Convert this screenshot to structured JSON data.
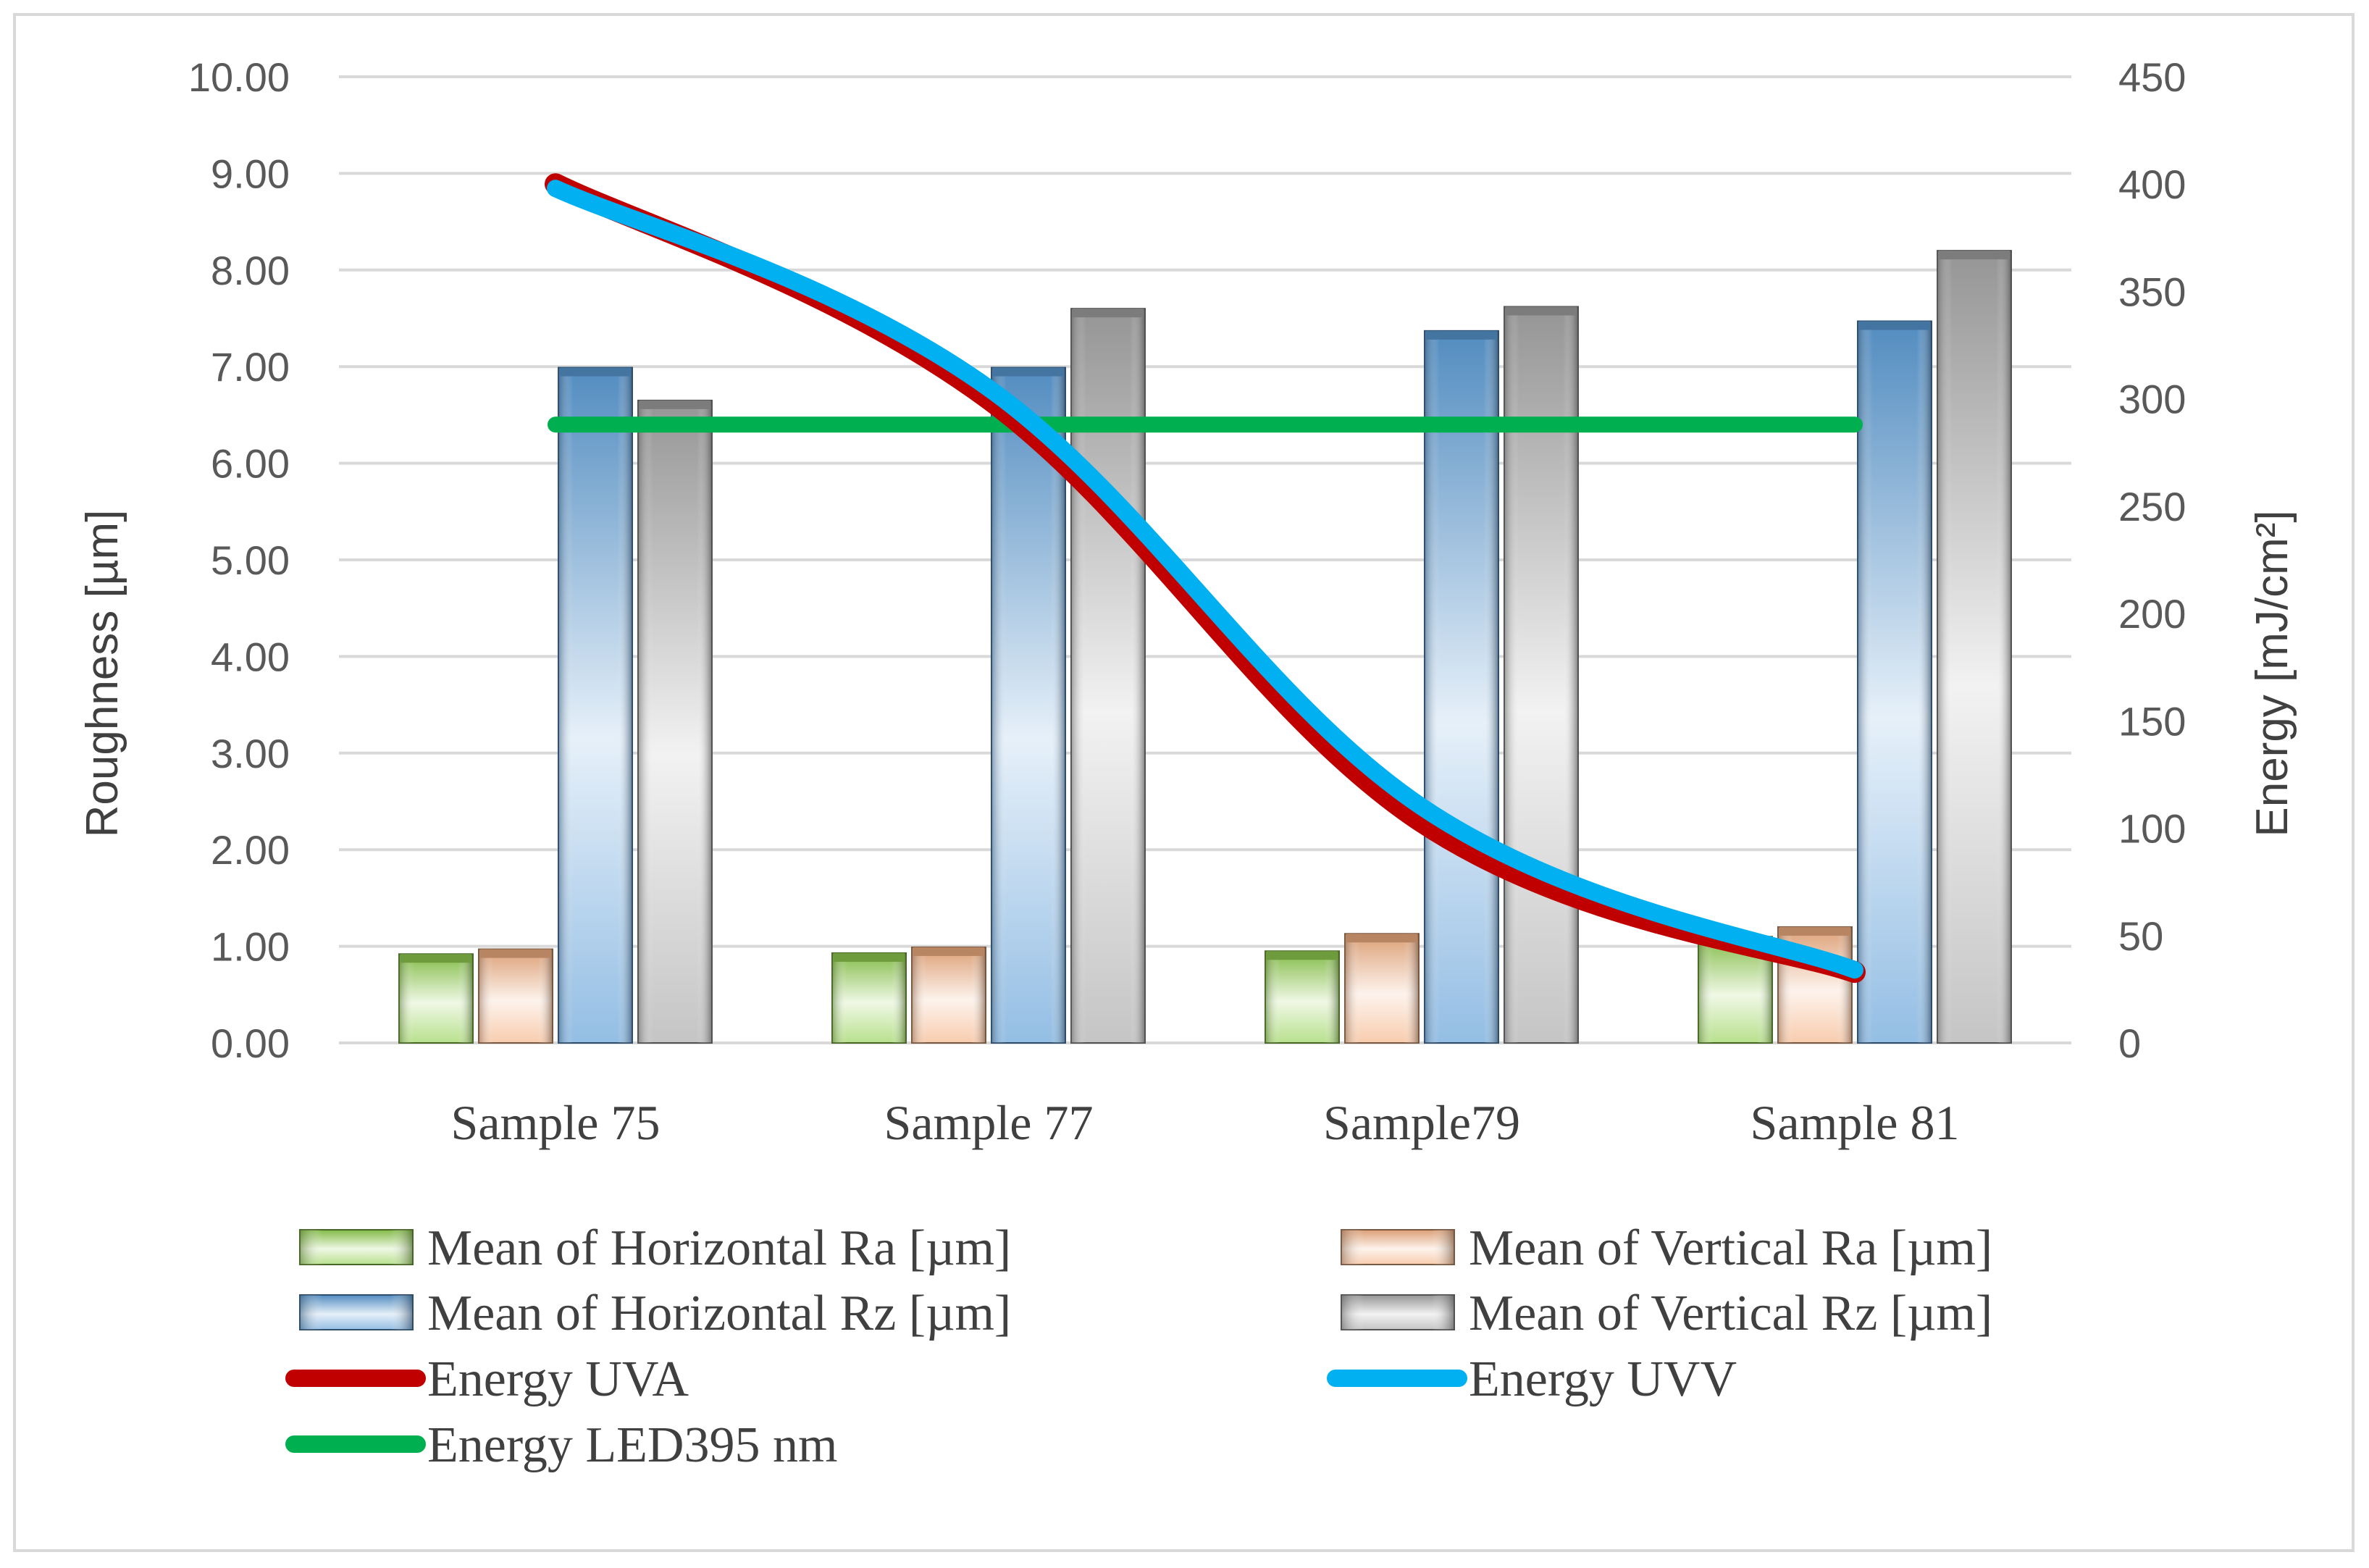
{
  "chart_data": {
    "type": "bar",
    "categories": [
      "Sample 75",
      "Sample 77",
      "Sample79",
      "Sample 81"
    ],
    "y_left": {
      "label": "Roughness [µm]",
      "range": [
        0,
        10
      ],
      "ticks": [
        "0.00",
        "1.00",
        "2.00",
        "3.00",
        "4.00",
        "5.00",
        "6.00",
        "7.00",
        "8.00",
        "9.00",
        "10.00"
      ]
    },
    "y_right": {
      "label": "Energy  [mJ/cm²]",
      "range": [
        0,
        450
      ],
      "ticks": [
        "0",
        "50",
        "100",
        "150",
        "200",
        "250",
        "300",
        "350",
        "400",
        "450"
      ]
    },
    "bar_series": [
      {
        "name": "Mean of Horizontal Ra [µm]",
        "values": [
          0.92,
          0.93,
          0.95,
          1.1
        ],
        "color": "#92d050"
      },
      {
        "name": "Mean of Vertical Ra [µm]",
        "values": [
          0.97,
          0.99,
          1.13,
          1.2
        ],
        "color": "#f4b183"
      },
      {
        "name": "Mean of Horizontal Rz [µm]",
        "values": [
          6.99,
          6.99,
          7.37,
          7.47
        ],
        "color": "#5b9bd5"
      },
      {
        "name": "Mean of Vertical Rz [µm]",
        "values": [
          6.65,
          7.6,
          7.62,
          8.2
        ],
        "color": "#a5a5a5"
      }
    ],
    "line_series": [
      {
        "name": "Energy UVA",
        "axis": "right",
        "values": [
          400,
          300,
          103,
          33
        ],
        "color": "#c00000"
      },
      {
        "name": "Energy UVV",
        "axis": "right",
        "values": [
          398,
          305,
          110,
          34
        ],
        "color": "#00b0f0"
      },
      {
        "name": "Energy LED395  nm",
        "axis": "right",
        "values": [
          288,
          288,
          288,
          288
        ],
        "color": "#00b050"
      }
    ],
    "grid": true,
    "legend_position": "bottom"
  }
}
